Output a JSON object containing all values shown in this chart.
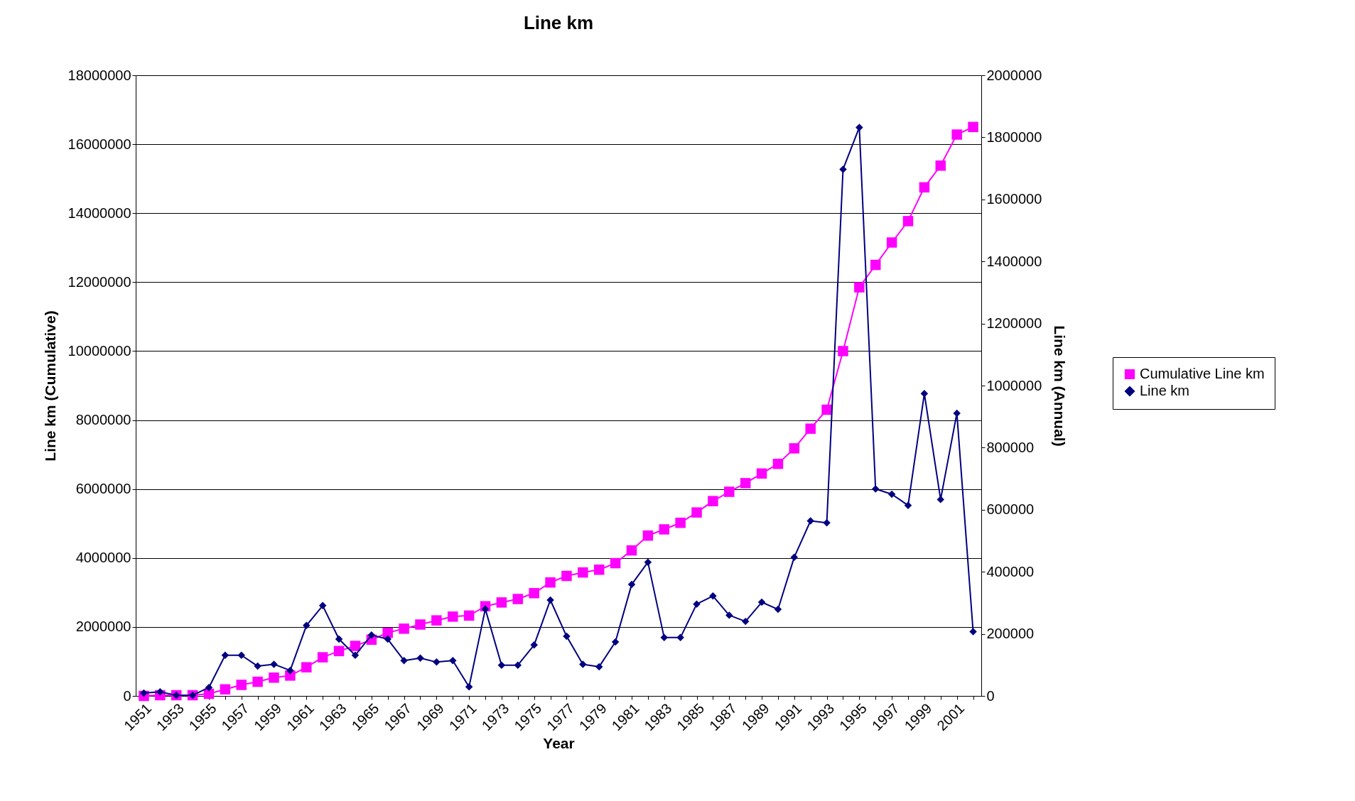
{
  "chart_data": {
    "type": "line",
    "title": "Line km",
    "xlabel": "Year",
    "ylabel": "Line km (Cumulative)",
    "y2label": "Line km (Annual)",
    "categories": [
      "1951",
      null,
      "1953",
      null,
      "1955",
      null,
      "1957",
      null,
      "1959",
      null,
      "1961",
      null,
      "1963",
      null,
      "1965",
      null,
      "1967",
      null,
      "1969",
      null,
      "1971",
      null,
      "1973",
      null,
      "1975",
      null,
      "1977",
      null,
      "1979",
      null,
      "1981",
      null,
      "1983",
      null,
      "1985",
      null,
      "1987",
      null,
      "1989",
      null,
      "1991",
      null,
      "1993",
      null,
      "1995",
      null,
      "1997",
      null,
      "1999",
      null,
      "2001",
      null
    ],
    "series": [
      {
        "name": "Cumulative Line km",
        "color": "#ff00ff",
        "marker": "square",
        "values": [
          0,
          20000,
          20000,
          20000,
          60000,
          190000,
          320000,
          410000,
          530000,
          590000,
          830000,
          1120000,
          1300000,
          1450000,
          1630000,
          1830000,
          1950000,
          2070000,
          2190000,
          2300000,
          2330000,
          2600000,
          2710000,
          2810000,
          2980000,
          3290000,
          3480000,
          3580000,
          3660000,
          3850000,
          4220000,
          4650000,
          4830000,
          5020000,
          5320000,
          5650000,
          5920000,
          6170000,
          6450000,
          6730000,
          7180000,
          7750000,
          8300000,
          10000000,
          11850000,
          12500000,
          13150000,
          13770000,
          14750000,
          15380000,
          16280000,
          16500000
        ]
      },
      {
        "name": "Line km",
        "color": "#000080",
        "marker": "diamond",
        "axis": "y2",
        "values": [
          9000,
          13000,
          2000,
          2000,
          27000,
          131000,
          131000,
          96000,
          102000,
          82000,
          227000,
          291000,
          183000,
          131000,
          196000,
          183000,
          114000,
          122000,
          109000,
          114000,
          29000,
          280000,
          99000,
          99000,
          164000,
          309000,
          192000,
          102000,
          94000,
          174000,
          359000,
          431000,
          188000,
          188000,
          296000,
          322000,
          260000,
          240000,
          302000,
          279000,
          447000,
          564000,
          558000,
          1697000,
          1832000,
          667000,
          650000,
          614000,
          974000,
          633000,
          911000,
          207000
        ]
      }
    ],
    "ylim": [
      0,
      18000000
    ],
    "yticks": [
      0,
      2000000,
      4000000,
      6000000,
      8000000,
      10000000,
      12000000,
      14000000,
      16000000,
      18000000
    ],
    "y2lim": [
      0,
      2000000
    ],
    "y2ticks": [
      0,
      200000,
      400000,
      600000,
      800000,
      1000000,
      1200000,
      1400000,
      1600000,
      1800000,
      2000000
    ],
    "grid": "y",
    "legend": "right",
    "line_style": "solid"
  }
}
